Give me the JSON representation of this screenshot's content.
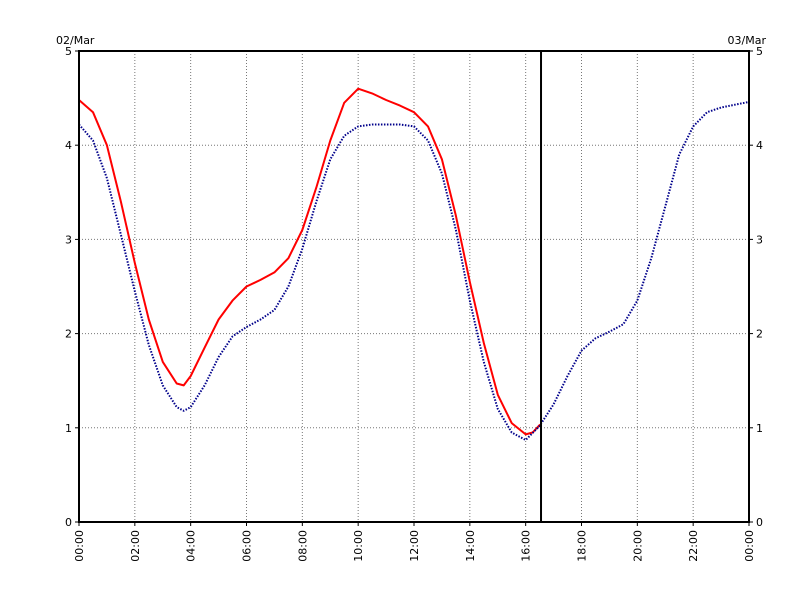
{
  "header": {
    "date_left": "02/Mar",
    "date_right": "03/Mar"
  },
  "chart_data": {
    "type": "line",
    "title": "",
    "xlabel": "",
    "ylabel": "",
    "xlim": [
      0,
      24
    ],
    "ylim": [
      0,
      5
    ],
    "grid": true,
    "x_tick_labels": [
      "00:00",
      "02:00",
      "04:00",
      "06:00",
      "08:00",
      "10:00",
      "12:00",
      "14:00",
      "16:00",
      "18:00",
      "20:00",
      "22:00",
      "00:00"
    ],
    "x_ticks": [
      0,
      2,
      4,
      6,
      8,
      10,
      12,
      14,
      16,
      18,
      20,
      22,
      24
    ],
    "y_ticks": [
      0,
      1,
      2,
      3,
      4,
      5
    ],
    "y_tick_labels": [
      "0",
      "1",
      "2",
      "3",
      "4",
      "5"
    ],
    "current_time_marker_x": 16.55,
    "series": [
      {
        "color": "#ff0000",
        "style": "solid",
        "x": [
          0,
          0.5,
          1,
          1.5,
          2,
          2.5,
          3,
          3.5,
          3.75,
          4,
          4.5,
          5,
          5.5,
          6,
          6.5,
          7,
          7.5,
          8,
          8.5,
          9,
          9.5,
          10,
          10.5,
          11,
          11.5,
          12,
          12.5,
          13,
          13.5,
          14,
          14.5,
          15,
          15.5,
          16,
          16.25,
          16.5
        ],
        "values": [
          4.48,
          4.35,
          4.0,
          3.4,
          2.75,
          2.15,
          1.7,
          1.47,
          1.45,
          1.55,
          1.85,
          2.15,
          2.35,
          2.5,
          2.57,
          2.65,
          2.8,
          3.1,
          3.55,
          4.05,
          4.45,
          4.6,
          4.55,
          4.48,
          4.42,
          4.35,
          4.2,
          3.85,
          3.25,
          2.55,
          1.9,
          1.35,
          1.05,
          0.93,
          0.95,
          1.03
        ]
      },
      {
        "color": "#00008b",
        "style": "dotted",
        "x": [
          0,
          0.5,
          1,
          1.5,
          2,
          2.5,
          3,
          3.5,
          3.75,
          4,
          4.5,
          5,
          5.5,
          6,
          6.5,
          7,
          7.5,
          8,
          8.5,
          9,
          9.5,
          10,
          10.5,
          11,
          11.5,
          12,
          12.5,
          13,
          13.5,
          14,
          14.5,
          15,
          15.5,
          16,
          16.5,
          17,
          17.5,
          18,
          18.5,
          19,
          19.5,
          20,
          20.5,
          21,
          21.5,
          22,
          22.5,
          23,
          23.5,
          24
        ],
        "values": [
          4.22,
          4.05,
          3.65,
          3.05,
          2.45,
          1.88,
          1.45,
          1.22,
          1.18,
          1.22,
          1.45,
          1.75,
          1.97,
          2.07,
          2.15,
          2.25,
          2.5,
          2.9,
          3.4,
          3.85,
          4.1,
          4.2,
          4.22,
          4.22,
          4.22,
          4.2,
          4.05,
          3.7,
          3.1,
          2.35,
          1.7,
          1.2,
          0.95,
          0.87,
          1.02,
          1.25,
          1.55,
          1.82,
          1.95,
          2.02,
          2.1,
          2.35,
          2.8,
          3.35,
          3.9,
          4.2,
          4.35,
          4.4,
          4.43,
          4.46
        ]
      }
    ]
  }
}
